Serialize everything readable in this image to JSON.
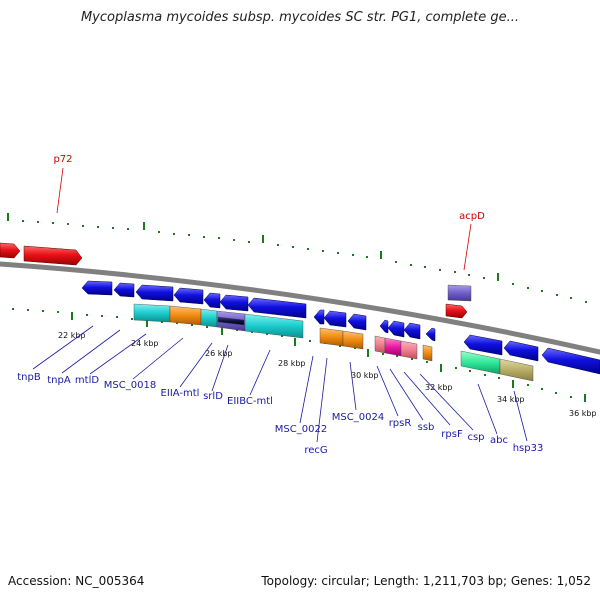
{
  "title": "Mycoplasma mycoides subsp. mycoides SC str. PG1, complete ge...",
  "footer": {
    "accession": "Accession: NC_005364",
    "topology": "Topology: circular; Length: 1,211,703 bp; Genes: 1,052"
  },
  "colors": {
    "backbone": "#808080",
    "forward_gene": "#e8131a",
    "reverse_gene": "#1010e0",
    "tick_major": "#1a6e1a",
    "tick_minor": "#2a8a2a",
    "label_blue": "#1a1aa6",
    "label_red": "#cc0000"
  },
  "kbp_labels": [
    "22 kbp",
    "24 kbp",
    "26 kbp",
    "28 kbp",
    "30 kbp",
    "32 kbp",
    "34 kbp",
    "36 kbp"
  ],
  "gene_labels": {
    "p72": "p72",
    "acpD": "acpD",
    "tnpB": "tnpB",
    "tnpA": "tnpA",
    "mtlD": "mtlD",
    "MSC_0018": "MSC_0018",
    "EIIA_mtl": "EIIA-mtl",
    "srlD": "srlD",
    "EIIBC_mtl": "EIIBC-mtl",
    "MSC_0022": "MSC_0022",
    "recG": "recG",
    "MSC_0024": "MSC_0024",
    "rpsR": "rpsR",
    "ssb": "ssb",
    "rpsF": "rpsF",
    "csp": "csp",
    "abc": "abc",
    "hsp33": "hsp33"
  }
}
